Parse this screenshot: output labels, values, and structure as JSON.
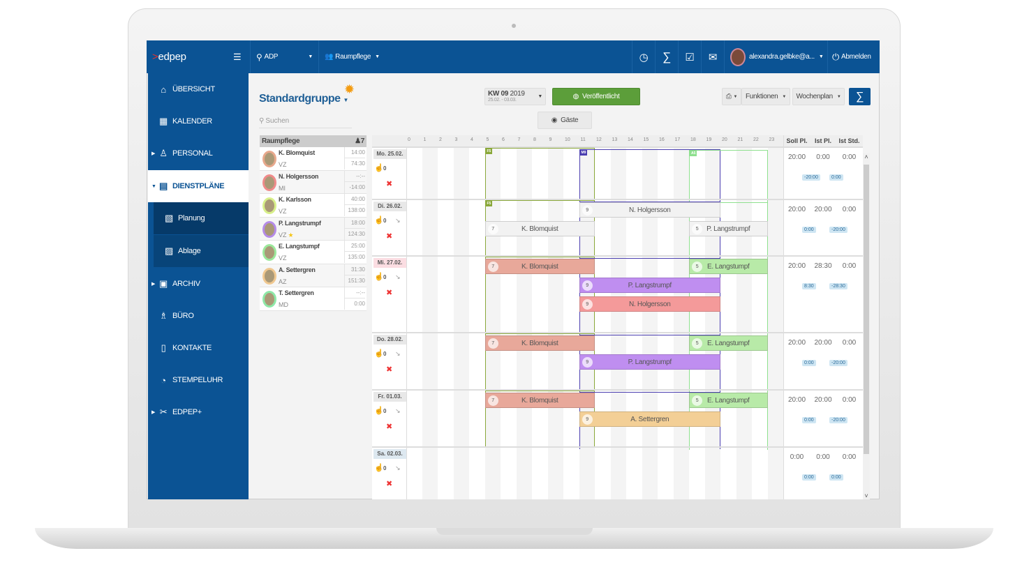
{
  "topbar": {
    "logo_mark": ">",
    "logo_text": "edpep",
    "location": "ADP",
    "group": "Raumpflege",
    "user": "alexandra.gelbke@a...",
    "logout": "Abmelden"
  },
  "sidebar": {
    "items": [
      {
        "label": "ÜBERSICHT",
        "icon": "home-icon"
      },
      {
        "label": "KALENDER",
        "icon": "calendar-icon"
      },
      {
        "label": "PERSONAL",
        "icon": "people-icon"
      },
      {
        "label": "DIENSTPLÄNE",
        "icon": "document-icon"
      },
      {
        "label": "Planung",
        "icon": "planning-icon"
      },
      {
        "label": "Ablage",
        "icon": "archive-doc-icon"
      },
      {
        "label": "ARCHIV",
        "icon": "archive-icon"
      },
      {
        "label": "BÜRO",
        "icon": "office-chair-icon"
      },
      {
        "label": "KONTAKTE",
        "icon": "contacts-icon"
      },
      {
        "label": "STEMPELUHR",
        "icon": "clock-icon"
      },
      {
        "label": "EDPEP+",
        "icon": "tools-icon"
      }
    ]
  },
  "main": {
    "title": "Standardgruppe",
    "search_placeholder": "Suchen",
    "week": "KW 09",
    "year": "2019",
    "range": "25.02. - 03.03.",
    "published": "Veröffentlicht",
    "guests": "Gäste",
    "functions": "Funktionen",
    "view": "Wochenplan",
    "sigma": "∑"
  },
  "employees": {
    "group": "Raumpflege",
    "count": "7",
    "rows": [
      {
        "name": "K. Blomquist",
        "contract": "VZ",
        "v1": "14:00",
        "v2": "74:30",
        "color": "#e8a88c"
      },
      {
        "name": "N. Holgersson",
        "contract": "MI",
        "v1": "--:--",
        "v2": "-14:00",
        "color": "#f08a8a"
      },
      {
        "name": "K. Karlsson",
        "contract": "VZ",
        "v1": "40:00",
        "v2": "138:00",
        "color": "#d8f08a"
      },
      {
        "name": "P. Langstrumpf",
        "contract": "VZ",
        "v1": "18:00",
        "v2": "124:30",
        "color": "#b58be8",
        "star": "★"
      },
      {
        "name": "E. Langstumpf",
        "contract": "VZ",
        "v1": "25:00",
        "v2": "135:00",
        "color": "#9be89b"
      },
      {
        "name": "A. Settergren",
        "contract": "AZ",
        "v1": "31:30",
        "v2": "151:30",
        "color": "#f0c890"
      },
      {
        "name": "T. Settergren",
        "contract": "MD",
        "v1": "--:--",
        "v2": "0:00",
        "color": "#8ee8a8"
      }
    ]
  },
  "schedule": {
    "hours": [
      "0",
      "1",
      "2",
      "3",
      "4",
      "5",
      "6",
      "7",
      "8",
      "9",
      "10",
      "11",
      "12",
      "13",
      "14",
      "15",
      "16",
      "17",
      "18",
      "19",
      "20",
      "21",
      "22",
      "23"
    ],
    "summary_headers": [
      "Soll Pl.",
      "Ist Pl.",
      "Ist Std."
    ],
    "shift_frames": [
      {
        "label": "F5",
        "start": 5,
        "end": 12,
        "color": "#8aa83a"
      },
      {
        "label": "M9",
        "start": 11,
        "end": 20,
        "color": "#4b3fb0"
      },
      {
        "label": "A5",
        "start": 18,
        "end": 23,
        "color": "#8ee08e"
      }
    ],
    "days": [
      {
        "label": "Mo. 25.02.",
        "count": "0",
        "soll": "20:00",
        "ist_pl": "0:00",
        "ist_std": "0:00",
        "diff1": "-20:00",
        "diff2": "0:00",
        "frames": true,
        "frame_labels": [
          0,
          1,
          2
        ],
        "shifts": []
      },
      {
        "label": "Di. 26.02.",
        "count": "0",
        "soll": "20:00",
        "ist_pl": "20:00",
        "ist_std": "0:00",
        "diff1": "0:00",
        "diff2": "-20:00",
        "frames": true,
        "frame_labels": [
          0
        ],
        "shifts": [
          {
            "name": "N. Holgersson",
            "num": "9",
            "start": 11,
            "end": 20,
            "lane": 0,
            "color": "#f2f2f2"
          },
          {
            "name": "K. Blomquist",
            "num": "7",
            "start": 5,
            "end": 12,
            "lane": 1,
            "color": "#f2f2f2"
          },
          {
            "name": "P. Langstrumpf",
            "num": "5",
            "start": 18,
            "end": 23,
            "lane": 1,
            "color": "#f2f2f2"
          }
        ]
      },
      {
        "label": "Mi. 27.02.",
        "highlight": "#fbdde2",
        "count": "0",
        "soll": "20:00",
        "ist_pl": "28:30",
        "ist_std": "0:00",
        "diff1": "8:30",
        "diff2": "-28:30",
        "frames": true,
        "frame_labels": [],
        "shifts": [
          {
            "name": "K. Blomquist",
            "num": "7",
            "start": 5,
            "end": 12,
            "lane": 0,
            "color": "#e8a89a"
          },
          {
            "name": "E. Langstumpf",
            "num": "5",
            "start": 18,
            "end": 23,
            "lane": 0,
            "color": "#b8eaa8"
          },
          {
            "name": "P. Langstrumpf",
            "num": "9",
            "start": 11,
            "end": 20,
            "lane": 1,
            "color": "#bf8ef0"
          },
          {
            "name": "N. Holgersson",
            "num": "9",
            "start": 11,
            "end": 20,
            "lane": 2,
            "color": "#f49a9a"
          }
        ]
      },
      {
        "label": "Do. 28.02.",
        "count": "0",
        "soll": "20:00",
        "ist_pl": "20:00",
        "ist_std": "0:00",
        "diff1": "0:00",
        "diff2": "-20:00",
        "frames": true,
        "frame_labels": [],
        "shifts": [
          {
            "name": "K. Blomquist",
            "num": "7",
            "start": 5,
            "end": 12,
            "lane": 0,
            "color": "#e8a89a"
          },
          {
            "name": "E. Langstumpf",
            "num": "5",
            "start": 18,
            "end": 23,
            "lane": 0,
            "color": "#b8eaa8"
          },
          {
            "name": "P. Langstrumpf",
            "num": "9",
            "start": 11,
            "end": 20,
            "lane": 1,
            "color": "#bf8ef0"
          }
        ]
      },
      {
        "label": "Fr. 01.03.",
        "count": "0",
        "soll": "20:00",
        "ist_pl": "20:00",
        "ist_std": "0:00",
        "diff1": "0:00",
        "diff2": "-20:00",
        "frames": true,
        "frame_labels": [],
        "shifts": [
          {
            "name": "K. Blomquist",
            "num": "7",
            "start": 5,
            "end": 12,
            "lane": 0,
            "color": "#e8a89a"
          },
          {
            "name": "E. Langstumpf",
            "num": "5",
            "start": 18,
            "end": 23,
            "lane": 0,
            "color": "#b8eaa8"
          },
          {
            "name": "A. Settergren",
            "num": "9",
            "start": 11,
            "end": 20,
            "lane": 1,
            "color": "#f3cf96"
          }
        ]
      },
      {
        "label": "Sa. 02.03.",
        "highlight": "#dde8f0",
        "count": "0",
        "soll": "0:00",
        "ist_pl": "0:00",
        "ist_std": "0:00",
        "diff1": "0:00",
        "diff2": "0:00",
        "frames": false,
        "frame_labels": [],
        "shifts": []
      }
    ]
  },
  "colors": {
    "brand": "#0b5394",
    "published": "#5c9e3a",
    "logo_accent": "#e8322b"
  }
}
